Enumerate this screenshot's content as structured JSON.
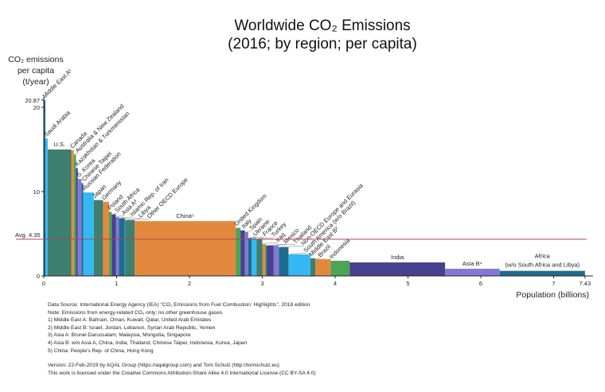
{
  "chart_data": {
    "type": "bar",
    "subtype": "variable-width",
    "title": [
      "Worldwide CO₂ Emissions",
      "(2016; by region; per capita)"
    ],
    "ylabel": [
      "CO₂ emissions",
      "per capita",
      "(t/year)"
    ],
    "xlabel": "Population (billions)",
    "xlim": [
      0,
      7.43
    ],
    "ylim": [
      0,
      20.87
    ],
    "x_ticks": [
      "0",
      "1",
      "2",
      "3",
      "4",
      "5",
      "6",
      "7",
      "7.43"
    ],
    "y_ticks": [
      "0",
      "10",
      "20",
      "20.87"
    ],
    "average": {
      "label": "Avg. 4.35",
      "value": 4.35,
      "color": "#b0455a"
    },
    "grid": false,
    "colors": {
      "dark_teal": "#1f6c8c",
      "light_blue": "#35b8f2",
      "teal_green": "#3e7f6f",
      "orange": "#e3893f",
      "green": "#4ca552",
      "navy": "#46428e",
      "lavender": "#8479d6"
    },
    "bars": [
      {
        "label": "Middle East A¹",
        "population": 0.022,
        "per_capita": 20.87,
        "color": "#1f6c8c"
      },
      {
        "label": "Saudi Arabia",
        "population": 0.032,
        "per_capita": 16.3,
        "color": "#35b8f2"
      },
      {
        "label": "U.S.",
        "population": 0.323,
        "per_capita": 15.0,
        "color": "#3e7f6f",
        "flat": true
      },
      {
        "label": "Canada",
        "population": 0.036,
        "per_capita": 14.9,
        "color": "#e3893f"
      },
      {
        "label": "Australia & New Zealand",
        "population": 0.029,
        "per_capita": 14.4,
        "color": "#4ca552"
      },
      {
        "label": "Kazakhstan & Turkmenistan",
        "population": 0.025,
        "per_capita": 12.8,
        "color": "#46428e"
      },
      {
        "label": "S. Korea",
        "population": 0.051,
        "per_capita": 11.5,
        "color": "#8479d6"
      },
      {
        "label": "Chinese Taipei",
        "population": 0.024,
        "per_capita": 11.0,
        "color": "#1f6c8c"
      },
      {
        "label": "Russian Federation",
        "population": 0.144,
        "per_capita": 9.9,
        "color": "#35b8f2"
      },
      {
        "label": "Japan",
        "population": 0.127,
        "per_capita": 9.0,
        "color": "#3e7f6f"
      },
      {
        "label": "Germany",
        "population": 0.082,
        "per_capita": 8.8,
        "color": "#e3893f"
      },
      {
        "label": "Poland",
        "population": 0.038,
        "per_capita": 7.6,
        "color": "#4ca552"
      },
      {
        "label": "South Africa",
        "population": 0.056,
        "per_capita": 7.3,
        "color": "#46428e"
      },
      {
        "label": "Asia A³",
        "population": 0.044,
        "per_capita": 7.0,
        "color": "#8479d6"
      },
      {
        "label": "Islamic Rep. of Iran",
        "population": 0.08,
        "per_capita": 6.85,
        "color": "#1f6c8c"
      },
      {
        "label": "Libya",
        "population": 0.006,
        "per_capita": 6.7,
        "color": "#35b8f2"
      },
      {
        "label": "Other OECD Europe",
        "population": 0.13,
        "per_capita": 6.6,
        "color": "#3e7f6f"
      },
      {
        "label": "China⁵",
        "population": 1.386,
        "per_capita": 6.5,
        "color": "#e3893f",
        "flat": true
      },
      {
        "label": "United Kingdom",
        "population": 0.066,
        "per_capita": 5.7,
        "color": "#4ca552"
      },
      {
        "label": "Italy",
        "population": 0.061,
        "per_capita": 5.4,
        "color": "#46428e"
      },
      {
        "label": "Spain",
        "population": 0.046,
        "per_capita": 5.2,
        "color": "#8479d6"
      },
      {
        "label": "Ukraine",
        "population": 0.045,
        "per_capita": 4.5,
        "color": "#1f6c8c"
      },
      {
        "label": "France",
        "population": 0.067,
        "per_capita": 4.5,
        "color": "#35b8f2"
      },
      {
        "label": "Turkey",
        "population": 0.08,
        "per_capita": 4.4,
        "color": "#3e7f6f"
      },
      {
        "label": "Iraq",
        "population": 0.037,
        "per_capita": 3.8,
        "color": "#e3893f"
      },
      {
        "label": "",
        "population": 0.02,
        "per_capita": 3.7,
        "color": "#4ca552"
      },
      {
        "label": "Mexico",
        "population": 0.1,
        "per_capita": 3.6,
        "color": "#46428e"
      },
      {
        "label": "Thailand",
        "population": 0.07,
        "per_capita": 3.6,
        "color": "#8479d6"
      },
      {
        "label": "Non-OECD Europe and Eurasia",
        "population": 0.133,
        "per_capita": 3.4,
        "color": "#1f6c8c"
      },
      {
        "label": "South America (w/o Brazil)",
        "population": 0.3,
        "per_capita": 2.56,
        "color": "#35b8f2"
      },
      {
        "label": "Middle East B²",
        "population": 0.07,
        "per_capita": 2.1,
        "color": "#3e7f6f"
      },
      {
        "label": "Brazil",
        "population": 0.208,
        "per_capita": 2.0,
        "color": "#e3893f"
      },
      {
        "label": "Indonesia",
        "population": 0.261,
        "per_capita": 1.8,
        "color": "#4ca552"
      },
      {
        "label": "India",
        "population": 1.31,
        "per_capita": 1.6,
        "color": "#46428e",
        "flat": true
      },
      {
        "label": "Asia B⁴",
        "population": 0.75,
        "per_capita": 0.85,
        "color": "#8479d6",
        "flat": true
      },
      {
        "label": "Africa",
        "sublabel": "(w/o South Africa and Libya)",
        "population": 1.171,
        "per_capita": 0.6,
        "color": "#1f6c8c",
        "flat": true
      }
    ]
  },
  "notes": [
    "Data Source: International Energy Agency (IEA) \"CO₂ Emissions from Fuel Combustion: Highlights\", 2018 edition",
    "Note: Emissions from energy-related CO₂ only; no other greenhouse gases",
    "1) Middle East A: Bahrain, Oman, Kuwait, Qatar, United Arab Emirates",
    "2) Middle East B: Israel, Jordan, Lebanon, Syrian Arab Republic, Yemen",
    "3) Asia A: Brunei Darussalam, Malaysia, Mongolia, Singapore",
    "4) Asia B: w/o Asia A, China, India, Thailand, Chinese Taipei, Indonesia, Korea, Japan",
    "5) China: People's Rep. of China, Hong Kong"
  ],
  "credits": [
    "Version: 22-Feb-2019 by AQAL Group (https://aqalgroup.com) and Tom Schulz (http://tomschulz.eu)",
    "This work is licensed under the Creative Commons Attribution-Share Alike 4.0 International License (CC BY-SA 4.0)"
  ]
}
